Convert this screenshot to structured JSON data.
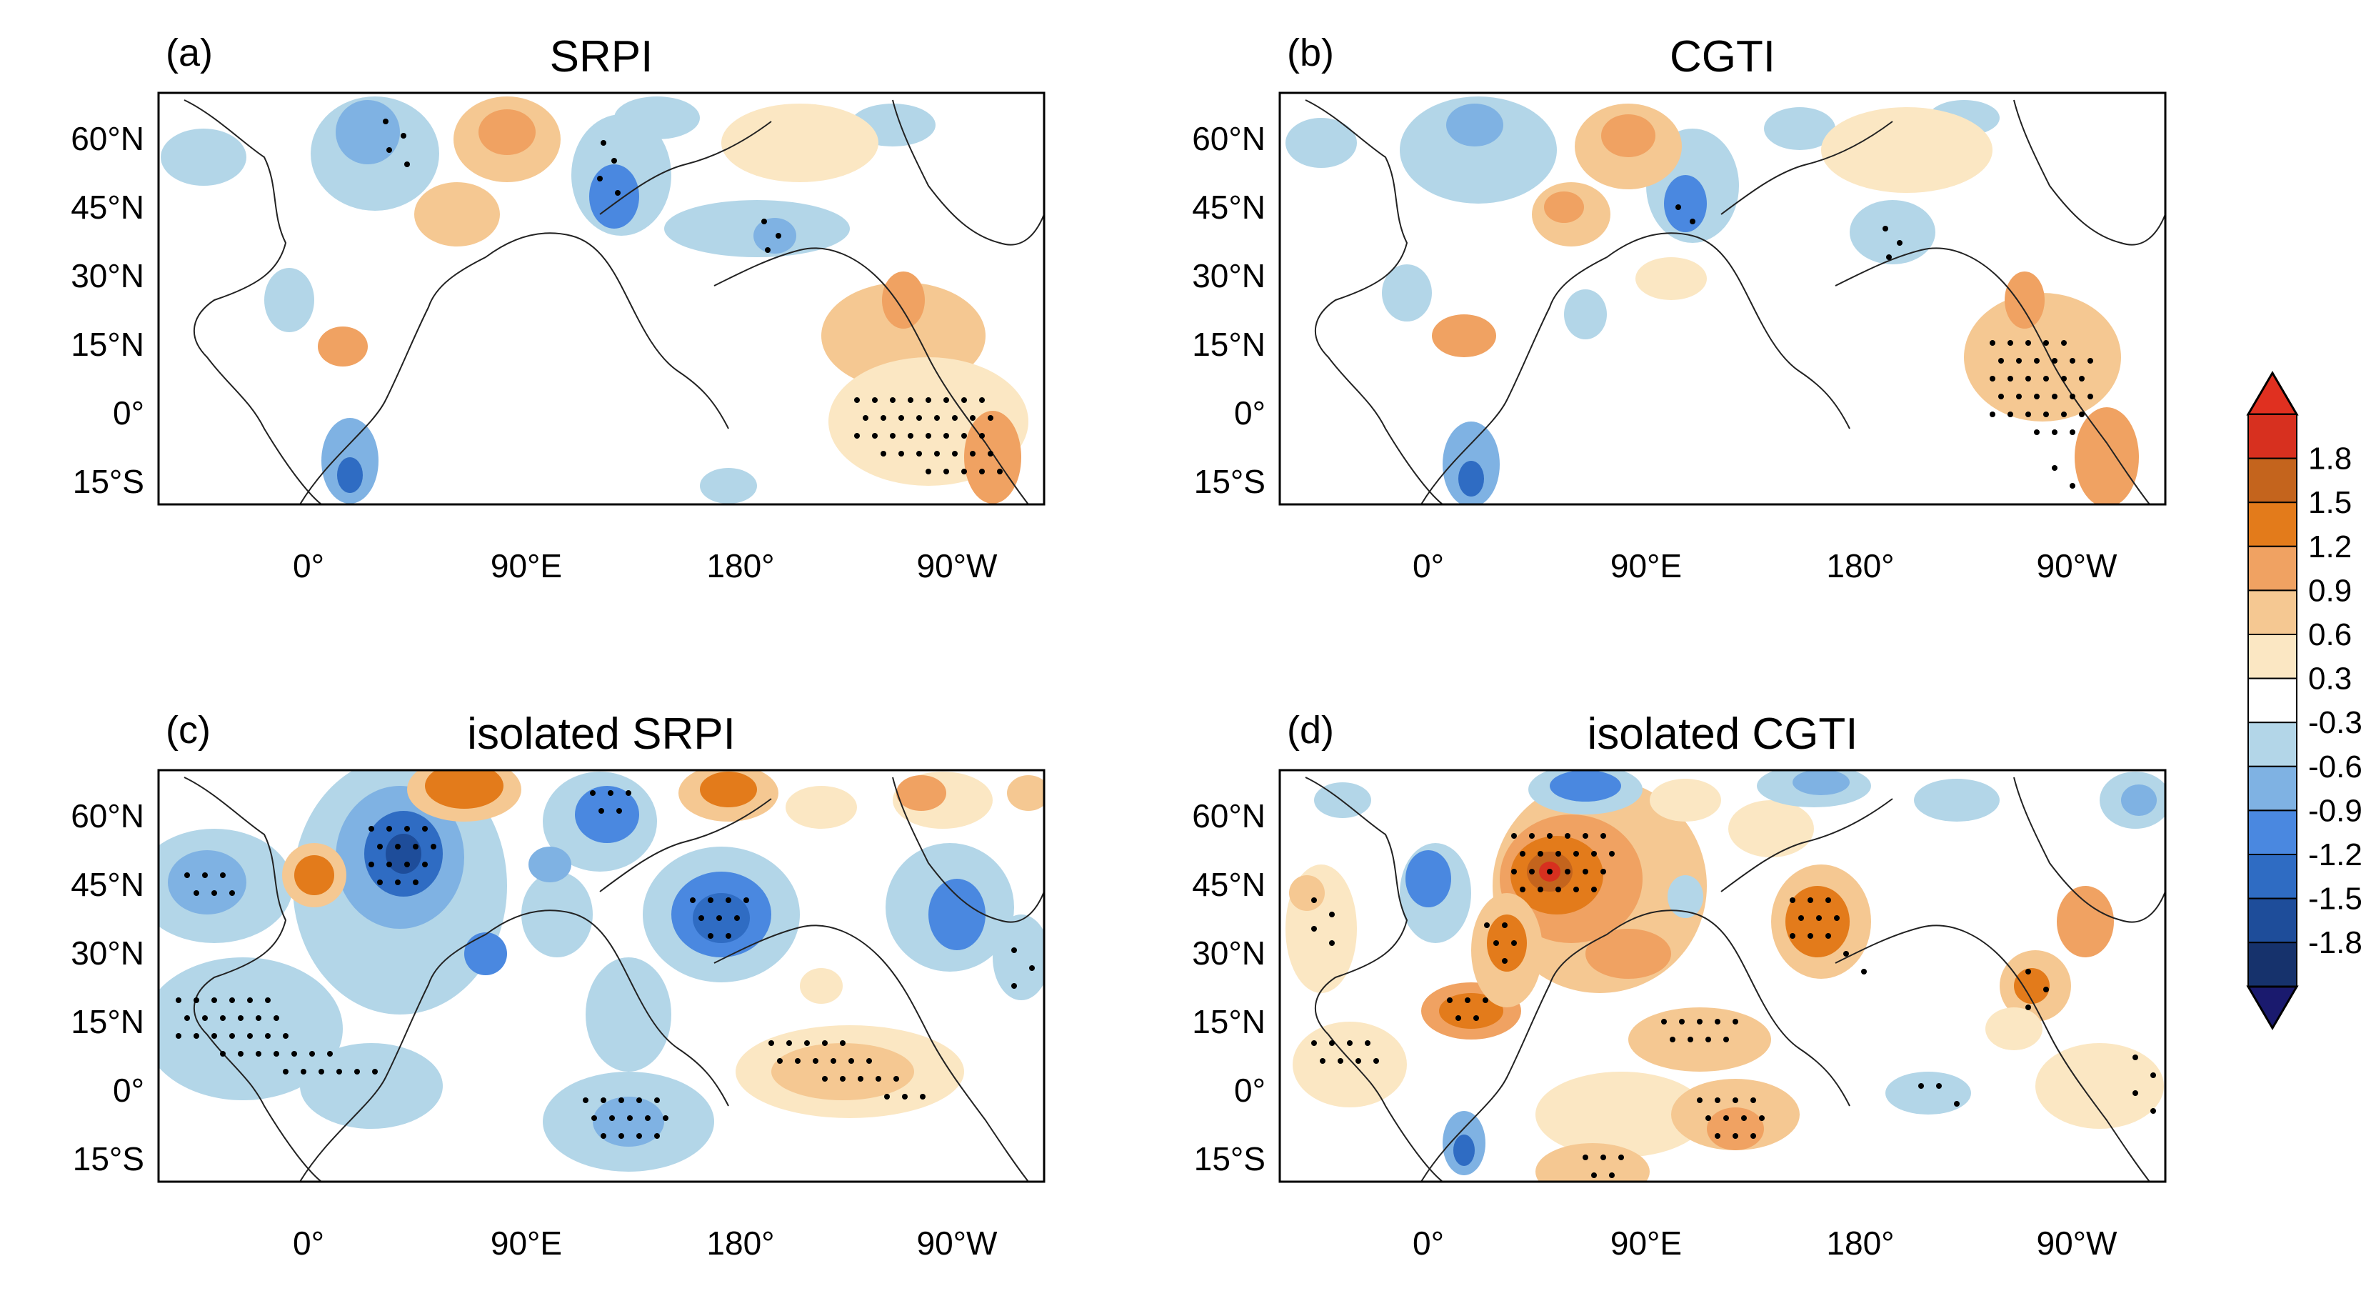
{
  "panels": [
    {
      "letter": "(a)",
      "title": "SRPI"
    },
    {
      "letter": "(b)",
      "title": "CGTI"
    },
    {
      "letter": "(c)",
      "title": "isolated SRPI"
    },
    {
      "letter": "(d)",
      "title": "isolated CGTI"
    }
  ],
  "lat_ticks": [
    "60°N",
    "45°N",
    "30°N",
    "15°N",
    "0°",
    "15°S"
  ],
  "lon_ticks": [
    "0°",
    "90°E",
    "180°",
    "90°W"
  ],
  "colorbar": {
    "labels": [
      "1.8",
      "1.5",
      "1.2",
      "0.9",
      "0.6",
      "0.3",
      "-0.3",
      "-0.6",
      "-0.9",
      "-1.2",
      "-1.5",
      "-1.8"
    ],
    "colors": [
      "#d7301f",
      "#c4641d",
      "#e37b1b",
      "#f0a262",
      "#f5c892",
      "#fbe7c3",
      "#ffffff",
      "#b3d6e8",
      "#7fb2e3",
      "#4a88e0",
      "#2f6cc3",
      "#1e4d9a",
      "#16326c"
    ],
    "top_arrow_color": "#e03020",
    "bottom_arrow_color": "#1a1a6e"
  }
}
